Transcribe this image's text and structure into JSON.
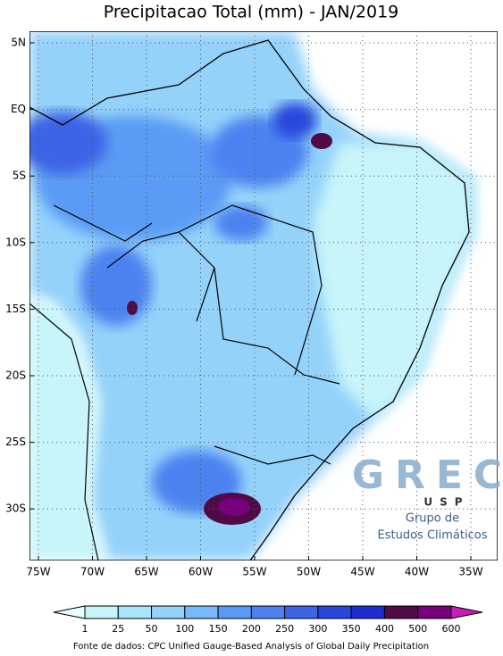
{
  "title": "Precipitacao Total (mm) - JAN/2019",
  "lat_labels": [
    "5N",
    "EQ",
    "5S",
    "10S",
    "15S",
    "20S",
    "25S",
    "30S"
  ],
  "lon_labels": [
    "75W",
    "70W",
    "65W",
    "60W",
    "55W",
    "50W",
    "45W",
    "40W",
    "35W"
  ],
  "colorbar": {
    "levels": [
      1,
      25,
      50,
      100,
      150,
      200,
      250,
      300,
      350,
      400,
      500,
      600
    ],
    "colors": [
      "#e6ffff",
      "#c8f5fa",
      "#a6e6f8",
      "#94d2fa",
      "#78b9fa",
      "#5a9bf5",
      "#4b82f0",
      "#3c64e6",
      "#2846dc",
      "#1e2dd2",
      "#500a46",
      "#78007d",
      "#c81eb4"
    ]
  },
  "source": "Fonte de dados: CPC Unified Gauge-Based Analysis of Global Daily Precipitation",
  "logo": {
    "mark": "GREC",
    "sub": "USP",
    "line1": "Grupo de",
    "line2": "Estudos Climáticos"
  }
}
